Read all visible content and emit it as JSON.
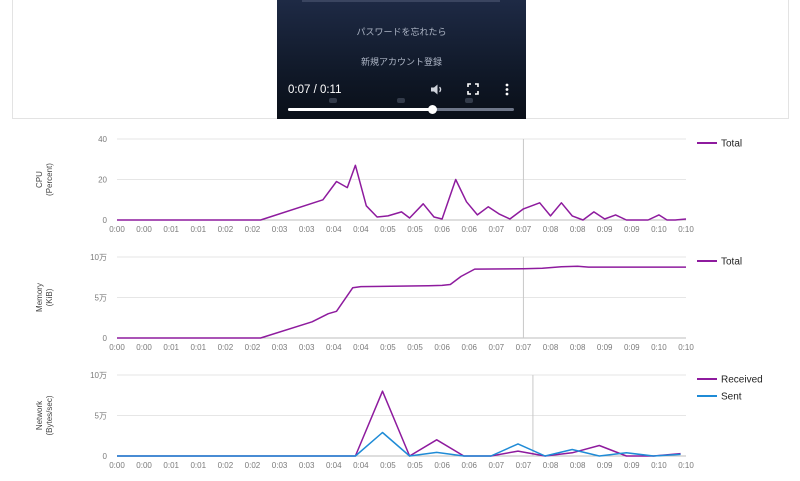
{
  "video": {
    "forgot_password": "パスワードを忘れたら",
    "new_account": "新規アカウント登録",
    "time": "0:07 / 0:11",
    "progress": 0.64
  },
  "chart_data": [
    {
      "type": "line",
      "ylabel": [
        "CPU",
        "(Percent)"
      ],
      "ylim": [
        0,
        40
      ],
      "yticks": [
        "0",
        "20",
        "40"
      ],
      "xticks": [
        "0:00",
        "0:00",
        "0:01",
        "0:01",
        "0:02",
        "0:02",
        "0:03",
        "0:03",
        "0:04",
        "0:04",
        "0:05",
        "0:05",
        "0:06",
        "0:06",
        "0:07",
        "0:07",
        "0:08",
        "0:08",
        "0:09",
        "0:09",
        "0:10",
        "0:10"
      ],
      "grid": true,
      "legend_position": "right",
      "cursor_x": 15.0,
      "series": [
        {
          "name": "Total",
          "color": "#8e1b9e",
          "points": [
            [
              0,
              0
            ],
            [
              5.3,
              0
            ],
            [
              7.6,
              10
            ],
            [
              8.1,
              19
            ],
            [
              8.5,
              16
            ],
            [
              8.8,
              27
            ],
            [
              9.2,
              7
            ],
            [
              9.6,
              1.5
            ],
            [
              10.0,
              2
            ],
            [
              10.5,
              4
            ],
            [
              10.8,
              1
            ],
            [
              11.3,
              8
            ],
            [
              11.7,
              1.5
            ],
            [
              12.0,
              0.5
            ],
            [
              12.5,
              20
            ],
            [
              12.9,
              9
            ],
            [
              13.3,
              2.5
            ],
            [
              13.7,
              6.5
            ],
            [
              14.1,
              3
            ],
            [
              14.5,
              0.5
            ],
            [
              15.0,
              5.5
            ],
            [
              15.6,
              8.5
            ],
            [
              16.0,
              2
            ],
            [
              16.4,
              8.5
            ],
            [
              16.8,
              2
            ],
            [
              17.2,
              0
            ],
            [
              17.6,
              4
            ],
            [
              18.0,
              0.5
            ],
            [
              18.4,
              2.5
            ],
            [
              18.8,
              0
            ],
            [
              19.6,
              0
            ],
            [
              20.0,
              2.5
            ],
            [
              20.3,
              0
            ],
            [
              20.6,
              0
            ],
            [
              21.0,
              0.5
            ]
          ]
        }
      ]
    },
    {
      "type": "line",
      "ylabel": [
        "Memory",
        "(KiB)"
      ],
      "ylim": [
        0,
        100000
      ],
      "yticks": [
        "0",
        "5万",
        "10万"
      ],
      "xticks": [
        "0:00",
        "0:00",
        "0:01",
        "0:01",
        "0:02",
        "0:02",
        "0:03",
        "0:03",
        "0:04",
        "0:04",
        "0:05",
        "0:05",
        "0:06",
        "0:06",
        "0:07",
        "0:07",
        "0:08",
        "0:08",
        "0:09",
        "0:09",
        "0:10",
        "0:10"
      ],
      "grid": true,
      "legend_position": "right",
      "cursor_x": 15.0,
      "series": [
        {
          "name": "Total",
          "color": "#8e1b9e",
          "points": [
            [
              0,
              0
            ],
            [
              5.3,
              0
            ],
            [
              7.2,
              20000
            ],
            [
              7.8,
              30000
            ],
            [
              8.1,
              33000
            ],
            [
              8.7,
              62000
            ],
            [
              9.0,
              63500
            ],
            [
              11.5,
              64500
            ],
            [
              12.0,
              65000
            ],
            [
              12.3,
              66000
            ],
            [
              12.7,
              76000
            ],
            [
              13.2,
              85000
            ],
            [
              15.0,
              85500
            ],
            [
              15.7,
              86000
            ],
            [
              16.4,
              88000
            ],
            [
              17.0,
              88500
            ],
            [
              17.4,
              87500
            ],
            [
              21.0,
              87500
            ]
          ]
        }
      ]
    },
    {
      "type": "line",
      "ylabel": [
        "Network",
        "(Bytes/sec)"
      ],
      "ylim": [
        0,
        100000
      ],
      "yticks": [
        "0",
        "5万",
        "10万"
      ],
      "xticks": [
        "0:00",
        "0:00",
        "0:01",
        "0:01",
        "0:02",
        "0:02",
        "0:03",
        "0:03",
        "0:04",
        "0:04",
        "0:05",
        "0:05",
        "0:06",
        "0:06",
        "0:07",
        "0:07",
        "0:08",
        "0:08",
        "0:09",
        "0:09",
        "0:10",
        "0:10"
      ],
      "grid": true,
      "legend_position": "right",
      "cursor_x": 15.35,
      "series": [
        {
          "name": "Received",
          "color": "#8e1b9e",
          "points": [
            [
              0,
              0
            ],
            [
              8.8,
              0
            ],
            [
              9.8,
              80000
            ],
            [
              10.8,
              0
            ],
            [
              11.8,
              20000
            ],
            [
              12.8,
              0
            ],
            [
              13.8,
              0
            ],
            [
              14.8,
              6000
            ],
            [
              15.8,
              0
            ],
            [
              16.8,
              4000
            ],
            [
              17.8,
              13000
            ],
            [
              18.8,
              0
            ],
            [
              19.8,
              0
            ],
            [
              20.8,
              3000
            ]
          ]
        },
        {
          "name": "Sent",
          "color": "#1f8bd6",
          "points": [
            [
              0,
              0
            ],
            [
              8.8,
              0
            ],
            [
              9.8,
              29000
            ],
            [
              10.8,
              0
            ],
            [
              11.8,
              4500
            ],
            [
              12.8,
              0
            ],
            [
              13.8,
              0
            ],
            [
              14.8,
              15000
            ],
            [
              15.8,
              0
            ],
            [
              16.8,
              8000
            ],
            [
              17.8,
              0
            ],
            [
              18.8,
              4000
            ],
            [
              19.8,
              0
            ],
            [
              20.8,
              2000
            ]
          ]
        }
      ]
    }
  ]
}
